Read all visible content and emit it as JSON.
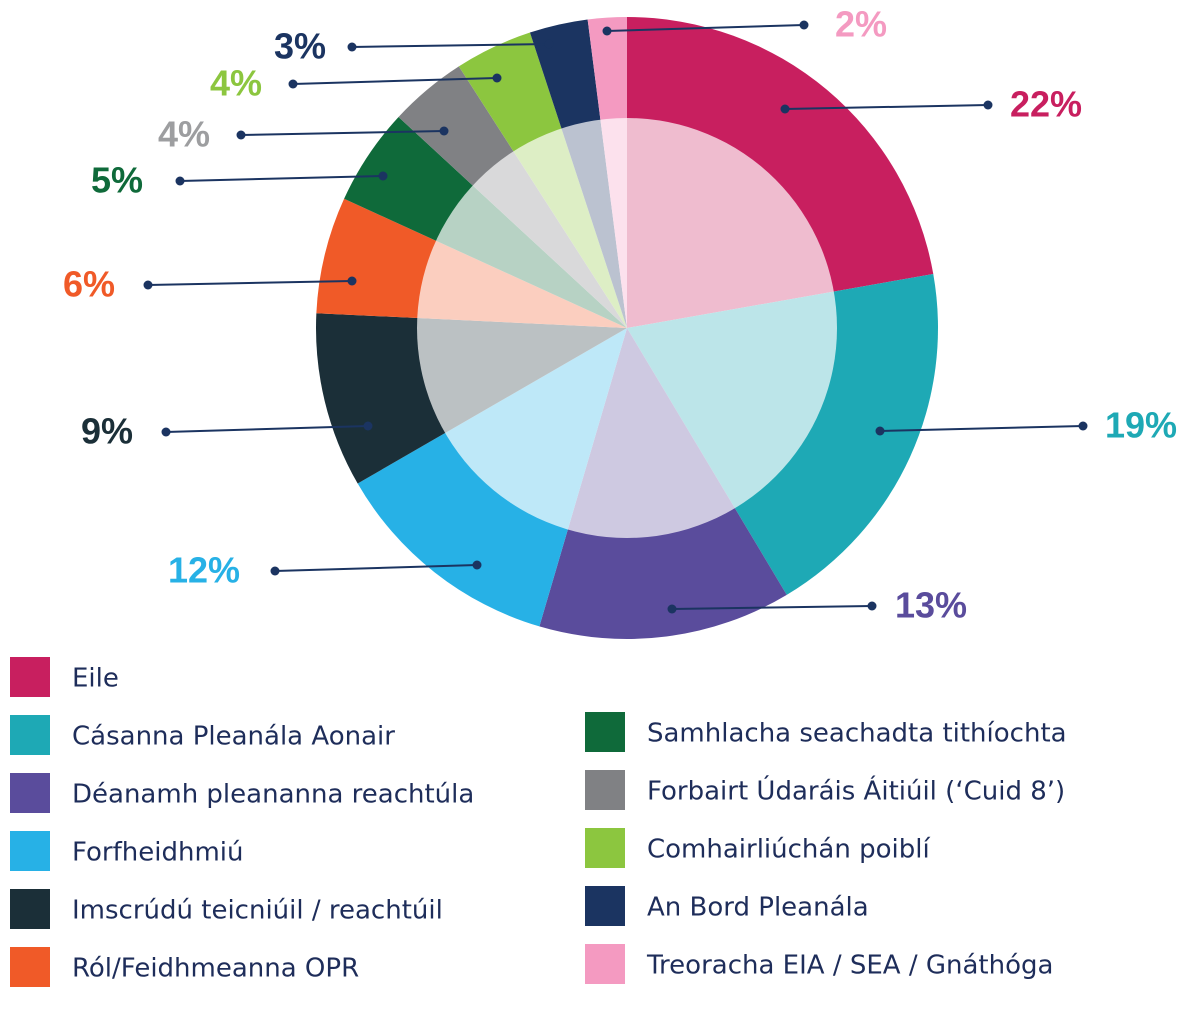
{
  "chart_data": {
    "type": "pie",
    "categories": [
      "Eile",
      "Cásanna Pleanála Aonair",
      "Déanamh pleananna reachtúla",
      "Forfheidhmiú",
      "Imscrúdú teicniúil / reachtúil",
      "Ról/Feidhmeanna OPR",
      "Samhlacha seachadta tithíochta",
      "Forbairt Údaráis Áitiúil (‘Cuid 8’)",
      "Comhairliúchán poiblí",
      "An Bord Pleanála",
      "Treoracha EIA / SEA / Gnáthóga"
    ],
    "values": [
      22,
      19,
      13,
      12,
      9,
      6,
      5,
      4,
      4,
      3,
      2
    ],
    "value_labels": [
      "22%",
      "19%",
      "13%",
      "12%",
      "9%",
      "6%",
      "5%",
      "4%",
      "4%",
      "3%",
      "2%"
    ],
    "colors": [
      "#c81f5f",
      "#1ea9b5",
      "#5a4c9c",
      "#27b1e6",
      "#1b2f38",
      "#f05a28",
      "#0f6a3a",
      "#808184",
      "#8cc63f",
      "#1b3461",
      "#f49ac1"
    ],
    "legend": "bottom"
  }
}
